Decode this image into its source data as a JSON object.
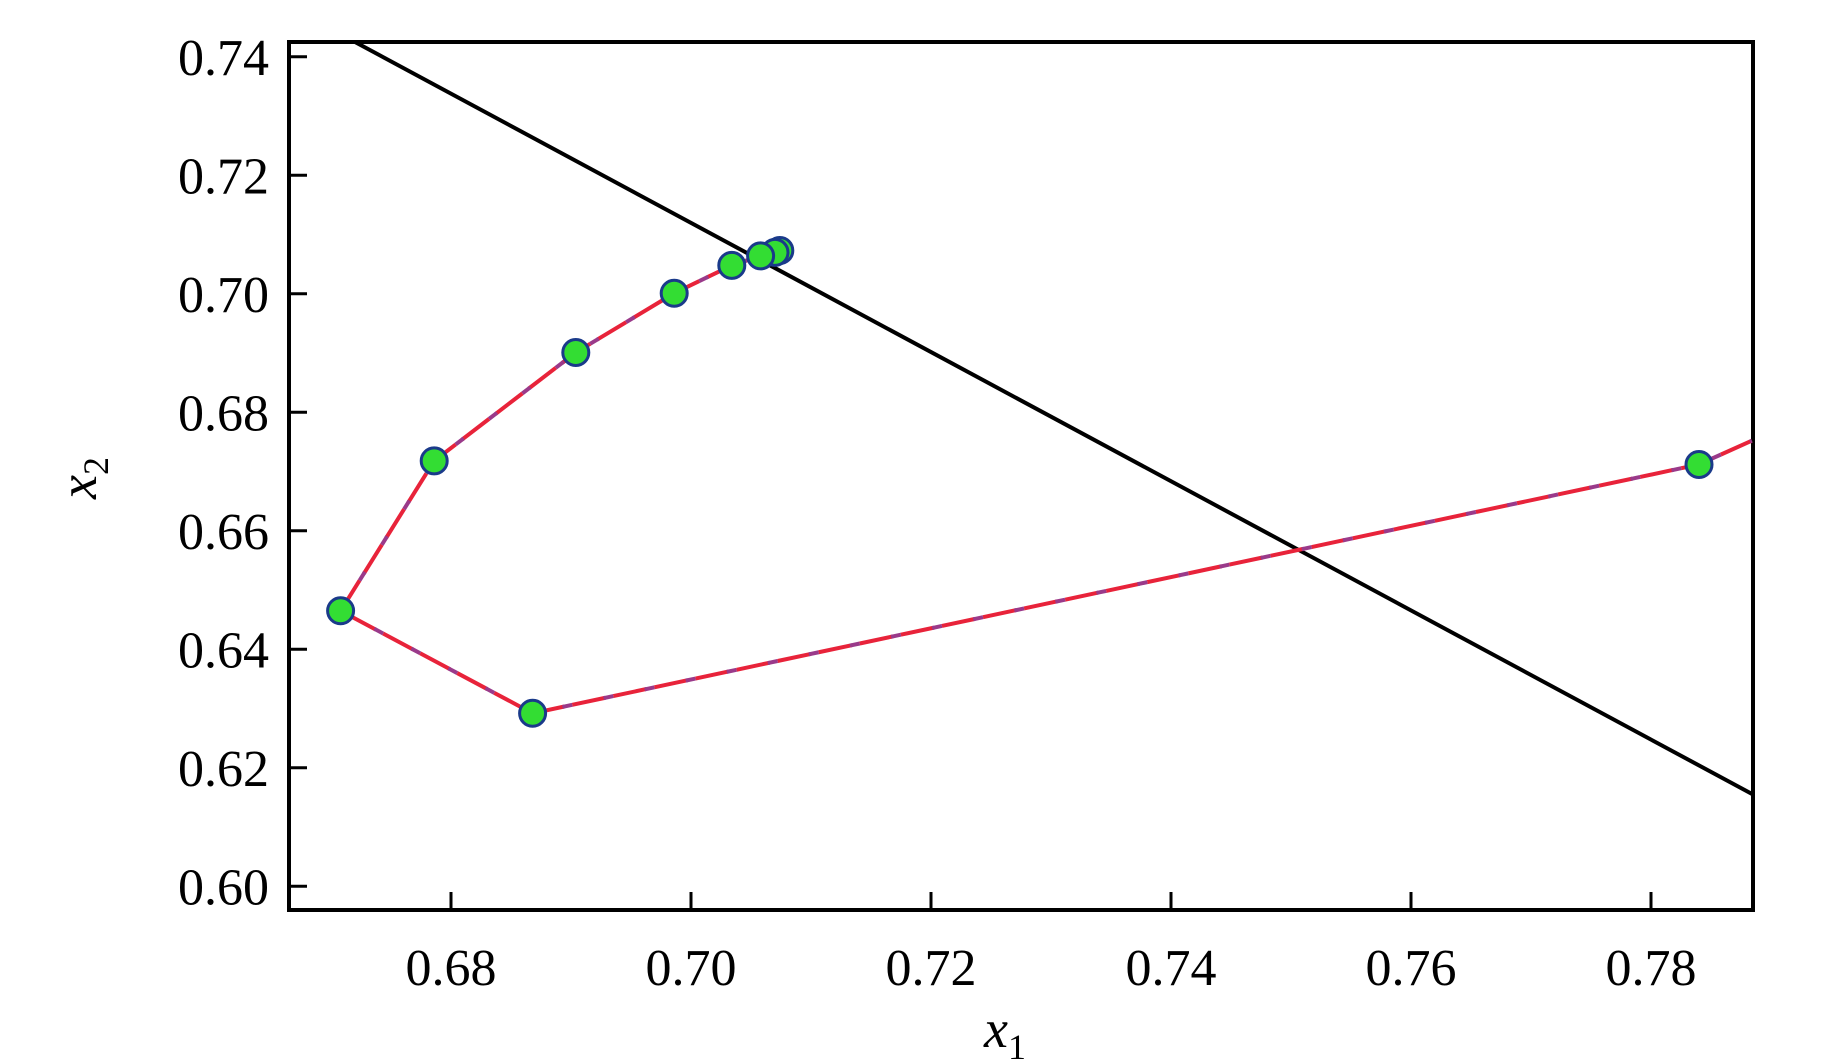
{
  "chart_data": {
    "type": "line",
    "title": "",
    "xlabel": {
      "base": "x",
      "sub": "1"
    },
    "ylabel": {
      "base": "x",
      "sub": "2"
    },
    "xlim": [
      0.6665,
      0.7885
    ],
    "ylim": [
      0.596,
      0.7425
    ],
    "grid": false,
    "xticks": [
      0.68,
      0.7,
      0.72,
      0.74,
      0.76,
      0.78
    ],
    "xtick_labels": [
      "0.68",
      "0.70",
      "0.72",
      "0.74",
      "0.76",
      "0.78"
    ],
    "yticks": [
      0.6,
      0.62,
      0.64,
      0.66,
      0.68,
      0.7,
      0.72,
      0.74
    ],
    "ytick_labels": [
      "0.60",
      "0.62",
      "0.64",
      "0.66",
      "0.68",
      "0.70",
      "0.72",
      "0.74"
    ],
    "series": [
      {
        "kind": "line",
        "color": "#000000",
        "dash": "none",
        "x": [
          0.672,
          0.7885
        ],
        "y": [
          0.7425,
          0.6155
        ]
      },
      {
        "kind": "trajectory",
        "color": "#e8233a",
        "dash_color": "#9a3a8a",
        "dash": "dashed",
        "x": [
          0.7884,
          0.784,
          0.6868,
          0.6708,
          0.6786,
          0.6904,
          0.6986,
          0.7034,
          0.7058,
          0.707,
          0.7074
        ],
        "y": [
          0.6752,
          0.6712,
          0.6292,
          0.6465,
          0.6718,
          0.6901,
          0.7001,
          0.7048,
          0.7064,
          0.707,
          0.7073
        ],
        "marker_count_start": 1
      }
    ],
    "points": {
      "fill": "#33dd33",
      "stroke": "#1a3a8a",
      "x": [
        0.784,
        0.6868,
        0.6708,
        0.6786,
        0.6904,
        0.6986,
        0.7034,
        0.7058,
        0.707,
        0.7074
      ],
      "y": [
        0.6712,
        0.6292,
        0.6465,
        0.6718,
        0.6901,
        0.7001,
        0.7048,
        0.7064,
        0.707,
        0.7073
      ]
    }
  }
}
